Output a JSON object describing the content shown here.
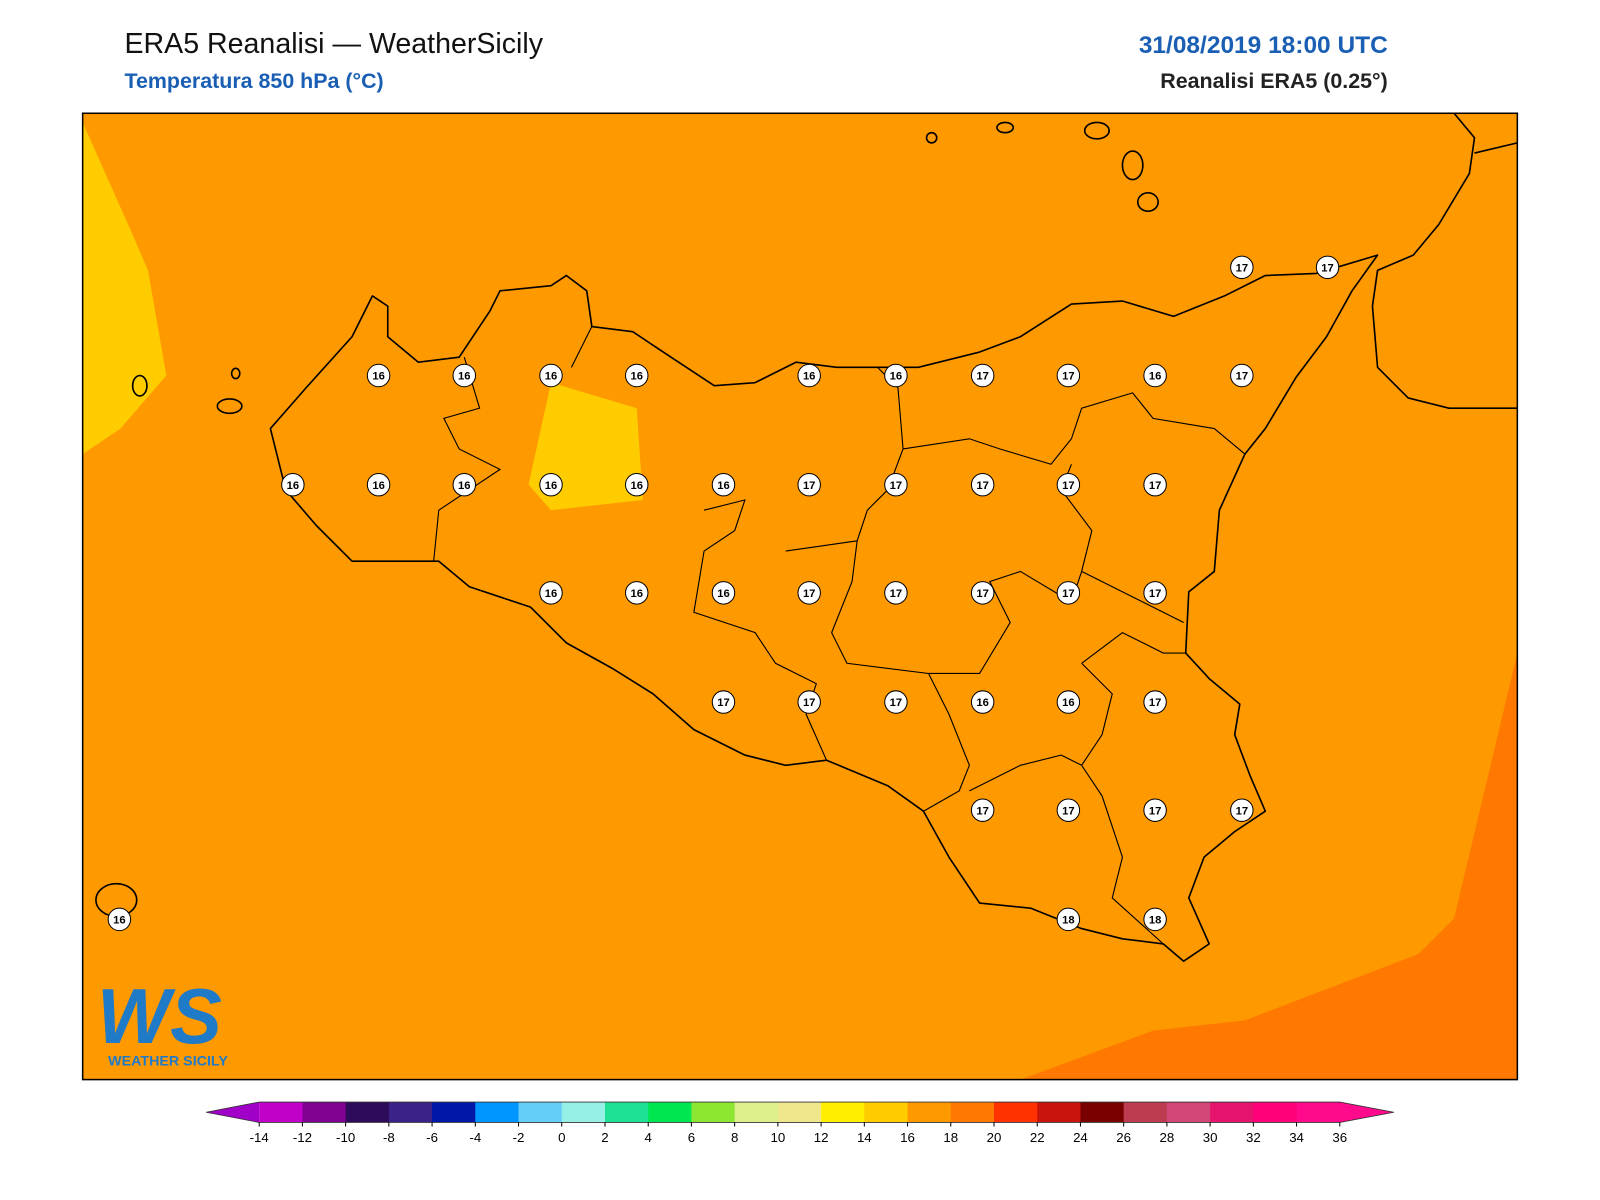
{
  "header": {
    "title": "ERA5 Reanalisi — WeatherSicily",
    "subtitle": "Temperatura 850 hPa (°C)",
    "datetime": "31/08/2019 18:00 UTC",
    "source": "Reanalisi ERA5 (0.25°)"
  },
  "map": {
    "stations": [
      17,
      17,
      16,
      16,
      16,
      16,
      16,
      16,
      17,
      17,
      16,
      17,
      16,
      16,
      16,
      16,
      16,
      16,
      17,
      17,
      17,
      17,
      17,
      16,
      16,
      16,
      17,
      17,
      17,
      17,
      17,
      17,
      17,
      17,
      16,
      16,
      17,
      17,
      17,
      17,
      17,
      16,
      18,
      18
    ]
  },
  "logo": {
    "mark": "WS",
    "name": "WEATHER SICILY"
  },
  "colorbar": {
    "ticks": [
      -14,
      -12,
      -10,
      -8,
      -6,
      -4,
      -2,
      0,
      2,
      4,
      6,
      8,
      10,
      12,
      14,
      16,
      18,
      20,
      22,
      24,
      26,
      28,
      30,
      32,
      34,
      36
    ],
    "under": "#a000c8",
    "over": "#ff0a8c",
    "colors": [
      "#c000c8",
      "#800090",
      "#2d0a5a",
      "#3a2288",
      "#0018a8",
      "#0096ff",
      "#64cdf8",
      "#96f0e6",
      "#1ee196",
      "#00e650",
      "#8ce632",
      "#dcf08c",
      "#f0e68c",
      "#ffee00",
      "#ffcc00",
      "#ff9900",
      "#ff7800",
      "#ff3200",
      "#c8140a",
      "#780000",
      "#be3c50",
      "#d24678",
      "#e6146e",
      "#ff0078",
      "#ff0a8c"
    ]
  }
}
